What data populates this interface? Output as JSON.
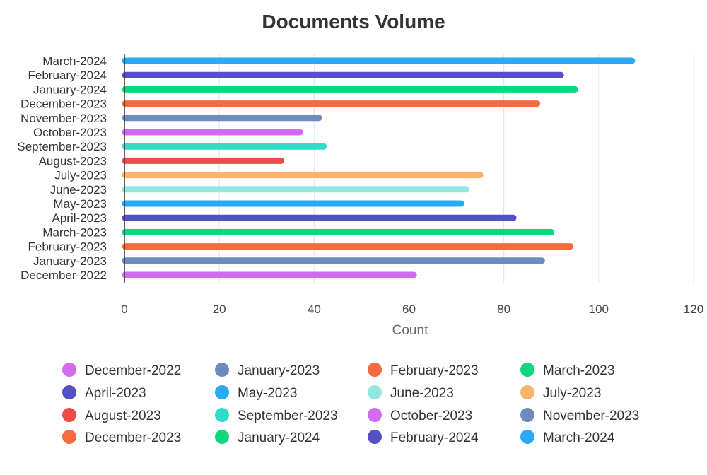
{
  "chart_data": {
    "type": "bar",
    "orientation": "horizontal",
    "title": "Documents Volume",
    "xlabel": "Count",
    "ylabel": "",
    "xlim": [
      0,
      120
    ],
    "x_ticks": [
      0,
      20,
      40,
      60,
      80,
      100,
      120
    ],
    "grid": "vertical",
    "legend_position": "bottom",
    "categories": [
      "December-2022",
      "January-2023",
      "February-2023",
      "March-2023",
      "April-2023",
      "May-2023",
      "June-2023",
      "July-2023",
      "August-2023",
      "September-2023",
      "October-2023",
      "November-2023",
      "December-2023",
      "January-2024",
      "February-2024",
      "March-2024"
    ],
    "values": [
      61,
      88,
      94,
      90,
      82,
      71,
      72,
      75,
      33,
      42,
      37,
      41,
      87,
      95,
      92,
      107
    ],
    "colors": [
      "#d36bee",
      "#6e8bbf",
      "#f36b3f",
      "#10d67e",
      "#5451c4",
      "#2aa9f4",
      "#92e8e1",
      "#f9b36c",
      "#f04b4b",
      "#2edcc7",
      "#d36bee",
      "#6e8bbf",
      "#f36b3f",
      "#10d67e",
      "#5451c4",
      "#2aa9f4"
    ]
  }
}
